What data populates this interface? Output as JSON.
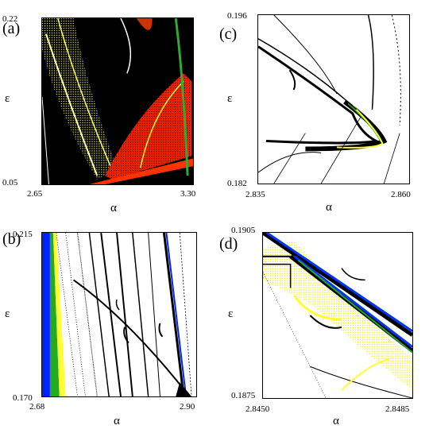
{
  "chart_data": [
    {
      "type": "heatmap",
      "panel_label": "(a)",
      "xlabel": "α",
      "ylabel": "ε",
      "x_ticks": [
        "2.65",
        "3.30"
      ],
      "y_ticks": [
        "0.22",
        "0.05"
      ],
      "xlim": [
        2.65,
        3.3
      ],
      "ylim": [
        0.05,
        0.22
      ],
      "colors": {
        "background": "#000000",
        "region_1": "#ffff33",
        "region_2": "#ff3300",
        "region_3": "#33aa33"
      }
    },
    {
      "type": "heatmap",
      "panel_label": "(b)",
      "xlabel": "α",
      "ylabel": "ε",
      "x_ticks": [
        "2.68",
        "2.90"
      ],
      "y_ticks": [
        "0.215",
        "0.170"
      ],
      "xlim": [
        2.68,
        2.9
      ],
      "ylim": [
        0.17,
        0.215
      ],
      "colors": {
        "background": "#ffffff",
        "region_1": "#0022ff",
        "region_2": "#22aa22",
        "region_3": "#ffff33"
      }
    },
    {
      "type": "heatmap",
      "panel_label": "(c)",
      "xlabel": "α",
      "ylabel": "ε",
      "x_ticks": [
        "2.835",
        "2.860"
      ],
      "y_ticks": [
        "0.196",
        "0.182"
      ],
      "xlim": [
        2.835,
        2.86
      ],
      "ylim": [
        0.182,
        0.196
      ],
      "colors": {
        "background": "#ffffff",
        "region_1": "#000000",
        "region_2": "#22aa22",
        "region_3": "#ffff33"
      }
    },
    {
      "type": "heatmap",
      "panel_label": "(d)",
      "xlabel": "α",
      "ylabel": "ε",
      "x_ticks": [
        "2.8450",
        "2.8485"
      ],
      "y_ticks": [
        "0.1905",
        "0.1875"
      ],
      "xlim": [
        2.845,
        2.8485
      ],
      "ylim": [
        0.1875,
        0.1905
      ],
      "colors": {
        "background": "#ffffff",
        "region_1": "#0033ff",
        "region_2": "#22aa22",
        "region_3": "#ffff33"
      }
    }
  ]
}
